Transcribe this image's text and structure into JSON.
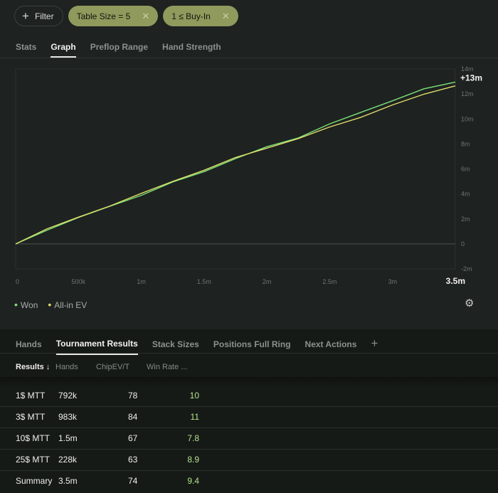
{
  "filters": {
    "add_label": "Filter",
    "chips": [
      "Table Size = 5",
      "1 ≤ Buy-In"
    ]
  },
  "top_tabs": [
    "Stats",
    "Graph",
    "Preflop Range",
    "Hand Strength"
  ],
  "active_top_tab": "Graph",
  "chart_data": {
    "type": "line",
    "x_unit": "hands",
    "x_ticks": [
      "0",
      "500k",
      "1m",
      "1.5m",
      "2m",
      "2.5m",
      "3m",
      "3.5m"
    ],
    "y_ticks": [
      "14m",
      "12m",
      "10m",
      "8m",
      "6m",
      "4m",
      "2m",
      "0",
      "-2m"
    ],
    "xlim": [
      0,
      3500000
    ],
    "ylim": [
      -2000000,
      14000000
    ],
    "end_label": "+13m",
    "grid": true,
    "legend_position": "bottom-left",
    "series": [
      {
        "name": "Won",
        "color": "#7ce37a",
        "x": [
          0,
          250000,
          500000,
          750000,
          1000000,
          1250000,
          1500000,
          1750000,
          2000000,
          2250000,
          2500000,
          2750000,
          3000000,
          3250000,
          3500000
        ],
        "y": [
          0,
          1150000,
          2050000,
          3050000,
          3900000,
          4900000,
          5850000,
          6800000,
          7750000,
          8550000,
          9550000,
          10550000,
          11500000,
          12350000,
          12950000
        ]
      },
      {
        "name": "All-in EV",
        "color": "#dedc6a",
        "x": [
          0,
          250000,
          500000,
          750000,
          1000000,
          1250000,
          1500000,
          1750000,
          2000000,
          2250000,
          2500000,
          2750000,
          3000000,
          3250000,
          3500000
        ],
        "y": [
          0,
          1200000,
          2100000,
          3100000,
          4000000,
          5000000,
          5950000,
          6850000,
          7700000,
          8450000,
          9300000,
          10200000,
          11100000,
          11950000,
          12650000
        ]
      }
    ]
  },
  "settings_icon": "gear-icon",
  "bottom_tabs": [
    "Hands",
    "Tournament Results",
    "Stack Sizes",
    "Positions Full Ring",
    "Next Actions"
  ],
  "active_bottom_tab": "Tournament Results",
  "table": {
    "headers": [
      "Results ↓",
      "Hands",
      "ChipEV/T",
      "Win Rate ..."
    ],
    "rows": [
      {
        "name": "1$ MTT",
        "hands": "792k",
        "chipev": "78",
        "winrate": "10"
      },
      {
        "name": "3$ MTT",
        "hands": "983k",
        "chipev": "84",
        "winrate": "11"
      },
      {
        "name": "10$ MTT",
        "hands": "1.5m",
        "chipev": "67",
        "winrate": "7.8"
      },
      {
        "name": "25$ MTT",
        "hands": "228k",
        "chipev": "63",
        "winrate": "8.9"
      },
      {
        "name": "Summary",
        "hands": "3.5m",
        "chipev": "74",
        "winrate": "9.4"
      }
    ]
  },
  "colors": {
    "background": "#1e2220",
    "chip": "#8f9a5c",
    "won": "#7ce37a",
    "allin_ev": "#dedc6a",
    "win_rate_text": "#b3e28a"
  }
}
